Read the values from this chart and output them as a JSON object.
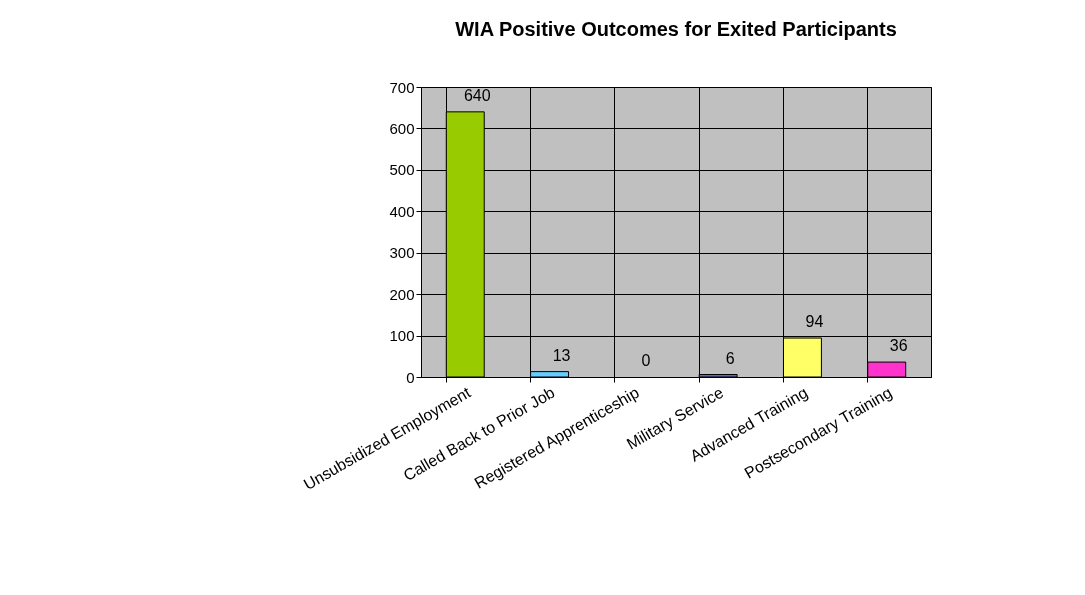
{
  "chart_data": {
    "type": "bar",
    "title": "WIA Positive Outcomes for Exited Participants",
    "categories": [
      "Unsubsidized Employment",
      "Called Back to Prior Job",
      "Registered Apprenticeship",
      "Military Service",
      "Advanced Training",
      "Postsecondary Training"
    ],
    "values": [
      640,
      13,
      0,
      6,
      94,
      36
    ],
    "colors": [
      "#99cc00",
      "#66ccff",
      "#ff6699",
      "#6666cc",
      "#ffff66",
      "#ff33cc"
    ],
    "ylim": [
      0,
      700
    ],
    "yticks": [
      0,
      100,
      200,
      300,
      400,
      500,
      600,
      700
    ],
    "grid": true,
    "data_labels": true,
    "legend": false
  }
}
